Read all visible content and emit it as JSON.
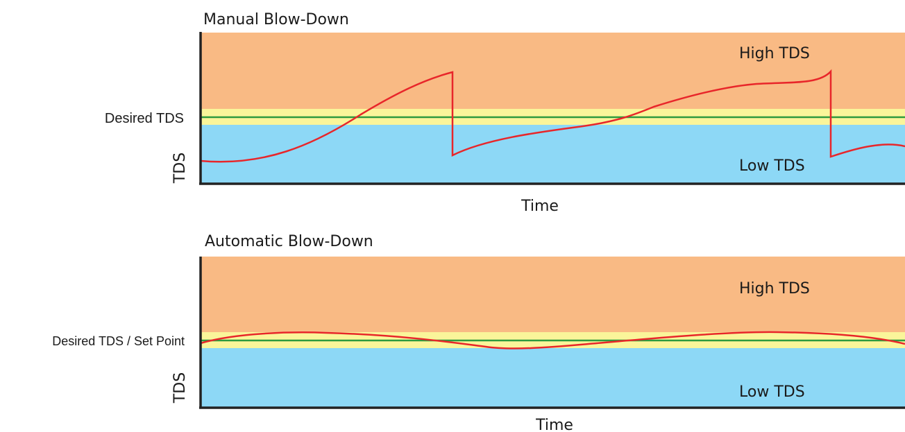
{
  "colors": {
    "high_zone": "#F9BA84",
    "desired_band": "#FAF59A",
    "low_zone": "#8DD8F6",
    "setpoint_line": "#2E9A3E",
    "tds_curve": "#E8262A",
    "axis": "#222222"
  },
  "manual": {
    "title": "Manual Blow-Down",
    "high_label": "High TDS",
    "low_label": "Low TDS",
    "desired_label": "Desired TDS",
    "y_label": "TDS",
    "x_label": "Time"
  },
  "automatic": {
    "title": "Automatic Blow-Down",
    "high_label": "High TDS",
    "low_label": "Low TDS",
    "desired_label": "Desired TDS / Set Point",
    "y_label": "TDS",
    "x_label": "Time"
  }
}
